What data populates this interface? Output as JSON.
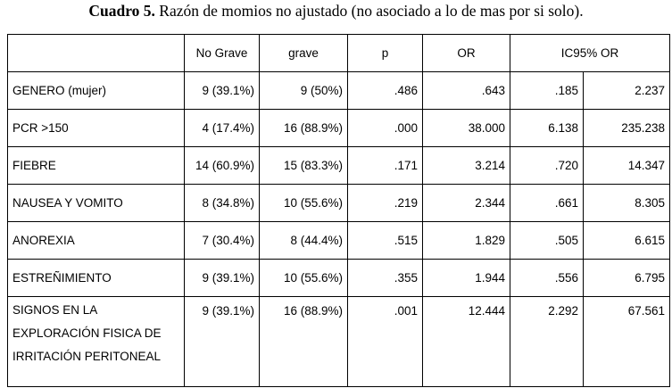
{
  "caption": {
    "number": "Cuadro 5.",
    "text": "Razón de momios no ajustado (no asociado a lo de mas por si solo)."
  },
  "table": {
    "headers": [
      "",
      "No Grave",
      "grave",
      "p",
      "OR",
      "IC95% OR"
    ],
    "rows": [
      {
        "label": [
          "GENERO (mujer)"
        ],
        "no_grave": "9 (39.1%)",
        "grave": "9 (50%)",
        "p": ".486",
        "or": ".643",
        "ic_low": ".185",
        "ic_high": "2.237"
      },
      {
        "label": [
          "PCR >150"
        ],
        "no_grave": "4 (17.4%)",
        "grave": "16 (88.9%)",
        "p": ".000",
        "or": "38.000",
        "ic_low": "6.138",
        "ic_high": "235.238"
      },
      {
        "label": [
          "FIEBRE"
        ],
        "no_grave": "14 (60.9%)",
        "grave": "15 (83.3%)",
        "p": ".171",
        "or": "3.214",
        "ic_low": ".720",
        "ic_high": "14.347"
      },
      {
        "label": [
          "NAUSEA Y VOMITO"
        ],
        "no_grave": "8 (34.8%)",
        "grave": "10 (55.6%)",
        "p": ".219",
        "or": "2.344",
        "ic_low": ".661",
        "ic_high": "8.305"
      },
      {
        "label": [
          "ANOREXIA"
        ],
        "no_grave": "7 (30.4%)",
        "grave": "8 (44.4%)",
        "p": ".515",
        "or": "1.829",
        "ic_low": ".505",
        "ic_high": "6.615"
      },
      {
        "label": [
          "ESTREÑIMIENTO"
        ],
        "no_grave": "9 (39.1%)",
        "grave": "10 (55.6%)",
        "p": ".355",
        "or": "1.944",
        "ic_low": ".556",
        "ic_high": "6.795"
      },
      {
        "label": [
          "SIGNOS EN LA",
          "EXPLORACIÓN FISICA DE",
          "IRRITACIÓN PERITONEAL"
        ],
        "no_grave": "9 (39.1%)",
        "grave": "16 (88.9%)",
        "p": ".001",
        "or": "12.444",
        "ic_low": "2.292",
        "ic_high": "67.561"
      }
    ]
  }
}
